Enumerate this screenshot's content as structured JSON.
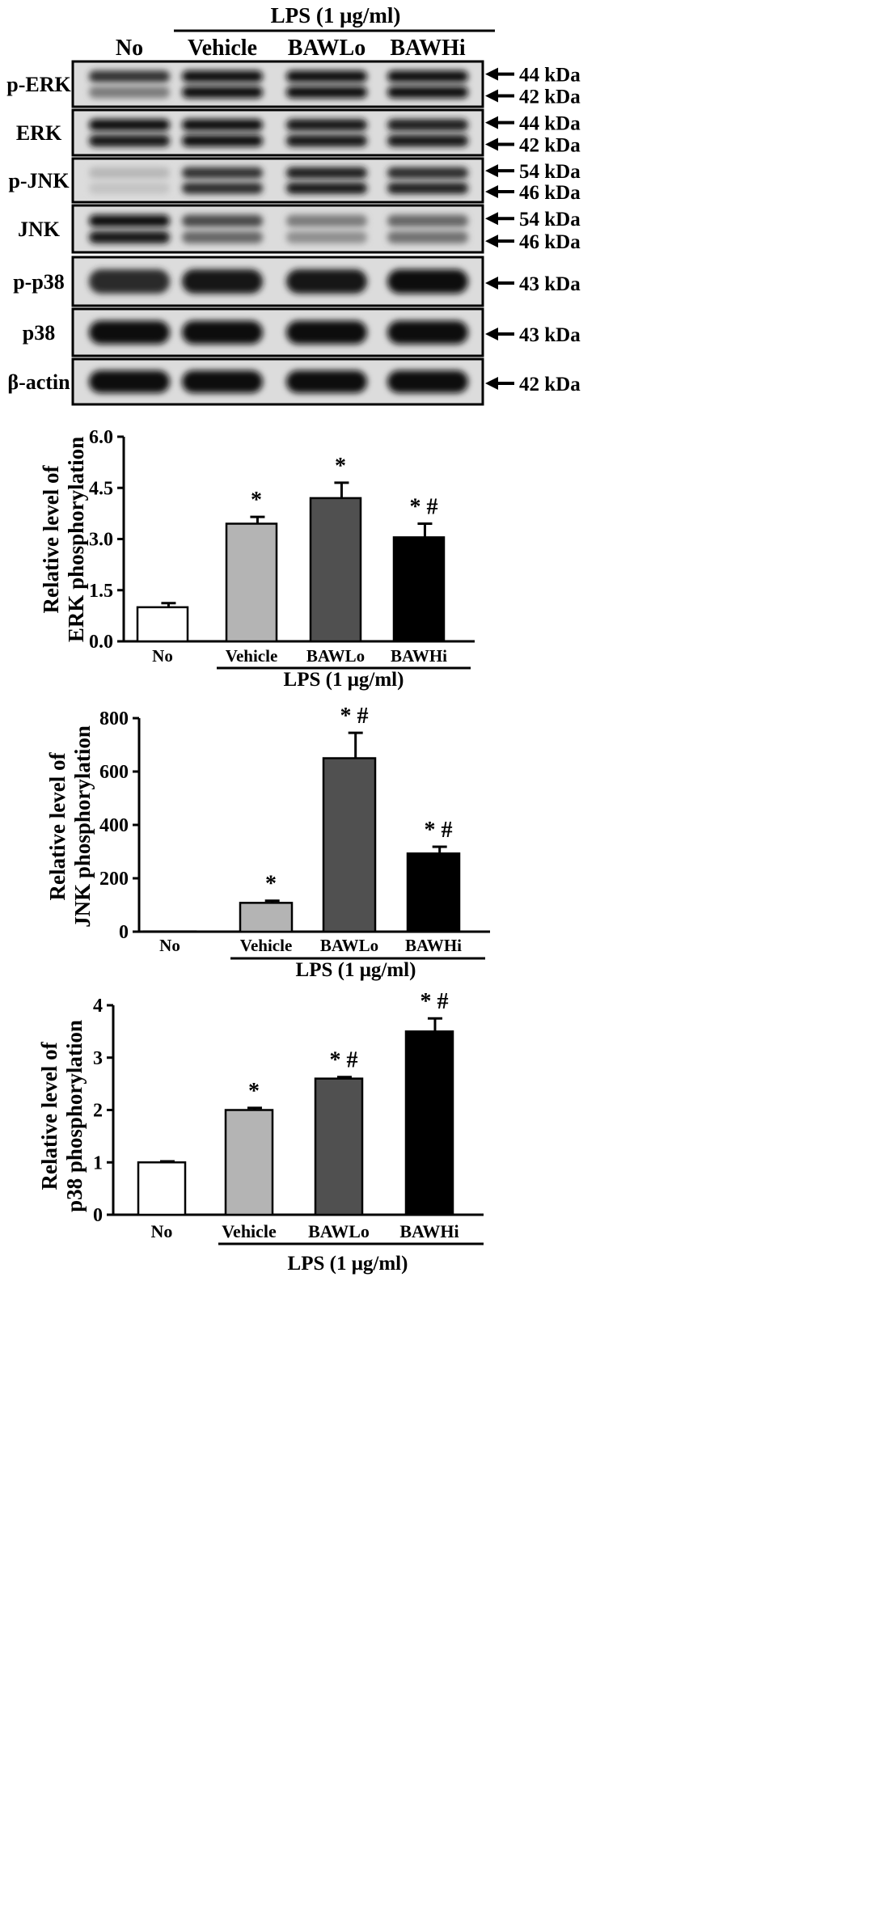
{
  "blot": {
    "header": "LPS (1 μg/ml)",
    "lanes": [
      "No",
      "Vehicle",
      "BAWLo",
      "BAWHi"
    ],
    "rows": [
      {
        "label": "p-ERK",
        "markers": [
          "44 kDa",
          "42 kDa"
        ],
        "lanes": [
          [
            0.8,
            0.45
          ],
          [
            1,
            1
          ],
          [
            1,
            1
          ],
          [
            1,
            1
          ]
        ]
      },
      {
        "label": "ERK",
        "markers": [
          "44 kDa",
          "42 kDa"
        ],
        "lanes": [
          [
            1,
            0.95
          ],
          [
            1,
            1
          ],
          [
            0.95,
            0.95
          ],
          [
            0.9,
            0.95
          ]
        ]
      },
      {
        "label": "p-JNK",
        "markers": [
          "54 kDa",
          "46 kDa"
        ],
        "lanes": [
          [
            0.15,
            0.1
          ],
          [
            0.8,
            0.85
          ],
          [
            0.9,
            0.95
          ],
          [
            0.85,
            0.9
          ]
        ]
      },
      {
        "label": "JNK",
        "markers": [
          "54 kDa",
          "46 kDa"
        ],
        "lanes": [
          [
            1,
            0.95
          ],
          [
            0.7,
            0.55
          ],
          [
            0.45,
            0.35
          ],
          [
            0.55,
            0.5
          ]
        ]
      },
      {
        "label": "p-p38",
        "markers": [
          "43 kDa"
        ],
        "lanes": [
          [
            0.85
          ],
          [
            0.95
          ],
          [
            0.95
          ],
          [
            1
          ]
        ]
      },
      {
        "label": "p38",
        "markers": [
          "43 kDa"
        ],
        "lanes": [
          [
            1
          ],
          [
            1
          ],
          [
            1
          ],
          [
            1
          ]
        ]
      },
      {
        "label": "β-actin",
        "markers": [
          "42 kDa"
        ],
        "lanes": [
          [
            1
          ],
          [
            1
          ],
          [
            1
          ],
          [
            1
          ]
        ]
      }
    ]
  },
  "chart_data": [
    {
      "type": "bar",
      "categories": [
        "No",
        "Vehicle",
        "BAWLo",
        "BAWHi"
      ],
      "values": [
        1.0,
        3.45,
        4.2,
        3.05
      ],
      "errors": [
        0.12,
        0.2,
        0.45,
        0.4
      ],
      "annotations": [
        "",
        "*",
        "*",
        "* #"
      ],
      "colors": [
        "#ffffff",
        "#b4b4b4",
        "#505050",
        "#000000"
      ],
      "ylabel": [
        "Relative level of",
        "ERK phosphorylation"
      ],
      "yticks": [
        "0.0",
        "1.5",
        "3.0",
        "4.5",
        "6.0"
      ],
      "ylim": [
        0,
        6
      ],
      "group_label": "LPS (1 μg/ml)",
      "grid": false
    },
    {
      "type": "bar",
      "categories": [
        "No",
        "Vehicle",
        "BAWLo",
        "BAWHi"
      ],
      "values": [
        1,
        108,
        650,
        293
      ],
      "errors": [
        0,
        8,
        95,
        25
      ],
      "annotations": [
        "",
        "*",
        "* #",
        "* #"
      ],
      "colors": [
        "#ffffff",
        "#b4b4b4",
        "#505050",
        "#000000"
      ],
      "ylabel": [
        "Relative level of",
        "JNK phosphorylation"
      ],
      "yticks": [
        "0",
        "200",
        "400",
        "600",
        "800"
      ],
      "ylim": [
        0,
        800
      ],
      "group_label": "LPS (1 μg/ml)",
      "grid": false
    },
    {
      "type": "bar",
      "categories": [
        "No",
        "Vehicle",
        "BAWLo",
        "BAWHi"
      ],
      "values": [
        1.0,
        2.0,
        2.6,
        3.5
      ],
      "errors": [
        0.02,
        0.04,
        0.03,
        0.25
      ],
      "annotations": [
        "",
        "*",
        "* #",
        "* #"
      ],
      "colors": [
        "#ffffff",
        "#b4b4b4",
        "#505050",
        "#000000"
      ],
      "ylabel": [
        "Relative level of",
        "p38 phosphorylation"
      ],
      "yticks": [
        "0",
        "1",
        "2",
        "3",
        "4"
      ],
      "ylim": [
        0,
        4
      ],
      "group_label": "LPS (1 μg/ml)",
      "grid": false
    }
  ]
}
